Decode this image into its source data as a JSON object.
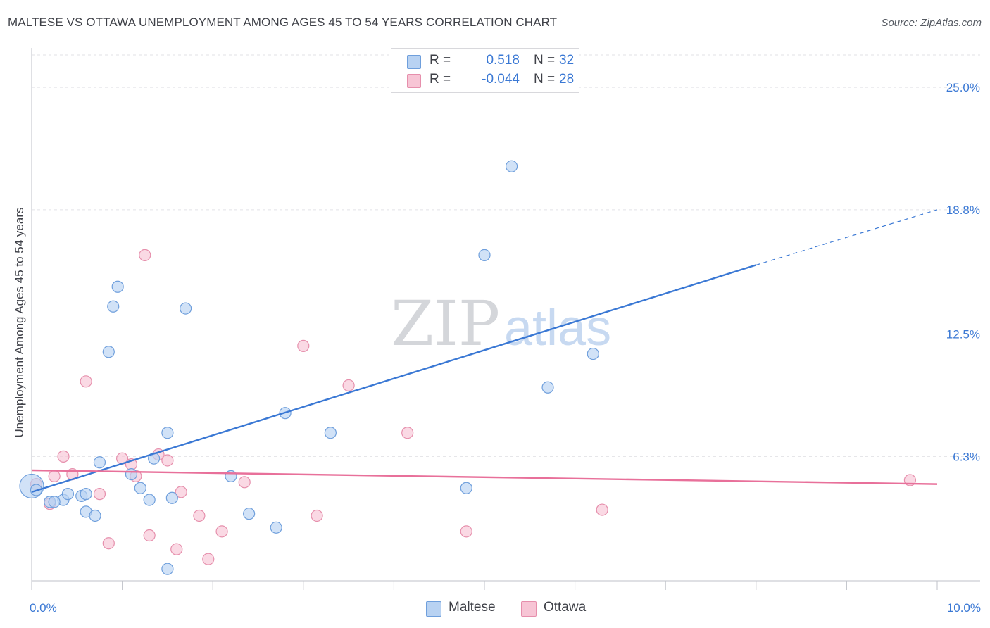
{
  "header": {
    "title": "MALTESE VS OTTAWA UNEMPLOYMENT AMONG AGES 45 TO 54 YEARS CORRELATION CHART",
    "source": "Source: ZipAtlas.com"
  },
  "watermark": {
    "zip": "ZIP",
    "atlas": "atlas"
  },
  "legend": {
    "rows": [
      {
        "r_label": "R =",
        "r_value": "0.518",
        "n_label": "N =",
        "n_value": "32"
      },
      {
        "r_label": "R =",
        "r_value": "-0.044",
        "n_label": "N =",
        "n_value": "28"
      }
    ]
  },
  "bottom_legend": {
    "maltese": "Maltese",
    "ottawa": "Ottawa"
  },
  "colors": {
    "maltese_fill": "#b8d2f2",
    "maltese_stroke": "#6f9fdc",
    "maltese_line": "#3a78d4",
    "ottawa_fill": "#f7c5d5",
    "ottawa_stroke": "#e68fac",
    "ottawa_line": "#e8709a",
    "tick_label": "#3a78d4",
    "grid": "#e2e2e6"
  },
  "chart_data": {
    "type": "scatter",
    "title": "MALTESE VS OTTAWA UNEMPLOYMENT AMONG AGES 45 TO 54 YEARS CORRELATION CHART",
    "xlabel": "",
    "ylabel": "Unemployment Among Ages 45 to 54 years",
    "xlim": [
      0,
      10
    ],
    "ylim": [
      0,
      27
    ],
    "x_tick_labels": [
      "0.0%",
      "10.0%"
    ],
    "y_ticks": [
      6.3,
      12.5,
      18.8,
      25.0
    ],
    "y_tick_labels": [
      "6.3%",
      "12.5%",
      "18.8%",
      "25.0%"
    ],
    "grid": true,
    "legend_position": "top-center",
    "series": [
      {
        "name": "Maltese",
        "r": 0.518,
        "n": 32,
        "trend": {
          "x0": 0.0,
          "y0": 4.5,
          "x1": 8.0,
          "y1": 16.0,
          "dash_to_x": 10.0,
          "dash_to_y": 18.8
        },
        "points": [
          [
            0.0,
            4.8
          ],
          [
            0.05,
            4.6
          ],
          [
            0.2,
            4.0
          ],
          [
            0.35,
            4.1
          ],
          [
            0.4,
            4.4
          ],
          [
            0.55,
            4.3
          ],
          [
            0.6,
            4.4
          ],
          [
            0.6,
            3.5
          ],
          [
            0.7,
            3.3
          ],
          [
            0.75,
            6.0
          ],
          [
            0.85,
            11.6
          ],
          [
            0.9,
            13.9
          ],
          [
            0.95,
            14.9
          ],
          [
            1.1,
            5.4
          ],
          [
            1.2,
            4.7
          ],
          [
            1.3,
            4.1
          ],
          [
            1.35,
            6.2
          ],
          [
            1.5,
            7.5
          ],
          [
            1.5,
            0.6
          ],
          [
            1.55,
            4.2
          ],
          [
            1.7,
            13.8
          ],
          [
            2.2,
            5.3
          ],
          [
            2.4,
            3.4
          ],
          [
            2.7,
            2.7
          ],
          [
            2.8,
            8.5
          ],
          [
            3.3,
            7.5
          ],
          [
            4.8,
            4.7
          ],
          [
            5.0,
            16.5
          ],
          [
            5.3,
            21.0
          ],
          [
            5.7,
            9.8
          ],
          [
            6.2,
            11.5
          ],
          [
            0.25,
            4.0
          ]
        ]
      },
      {
        "name": "Ottawa",
        "r": -0.044,
        "n": 28,
        "trend": {
          "x0": 0.0,
          "y0": 5.6,
          "x1": 10.0,
          "y1": 4.9
        },
        "points": [
          [
            0.05,
            4.9
          ],
          [
            0.2,
            3.9
          ],
          [
            0.25,
            5.3
          ],
          [
            0.35,
            6.3
          ],
          [
            0.45,
            5.4
          ],
          [
            0.6,
            10.1
          ],
          [
            0.75,
            4.4
          ],
          [
            0.85,
            1.9
          ],
          [
            1.0,
            6.2
          ],
          [
            1.1,
            5.9
          ],
          [
            1.15,
            5.3
          ],
          [
            1.25,
            16.5
          ],
          [
            1.3,
            2.3
          ],
          [
            1.4,
            6.4
          ],
          [
            1.5,
            6.1
          ],
          [
            1.6,
            1.6
          ],
          [
            1.65,
            4.5
          ],
          [
            1.85,
            3.3
          ],
          [
            1.95,
            1.1
          ],
          [
            2.1,
            2.5
          ],
          [
            2.35,
            5.0
          ],
          [
            3.0,
            11.9
          ],
          [
            3.15,
            3.3
          ],
          [
            3.5,
            9.9
          ],
          [
            4.15,
            7.5
          ],
          [
            4.8,
            2.5
          ],
          [
            6.3,
            3.6
          ],
          [
            9.7,
            5.1
          ]
        ]
      }
    ]
  }
}
